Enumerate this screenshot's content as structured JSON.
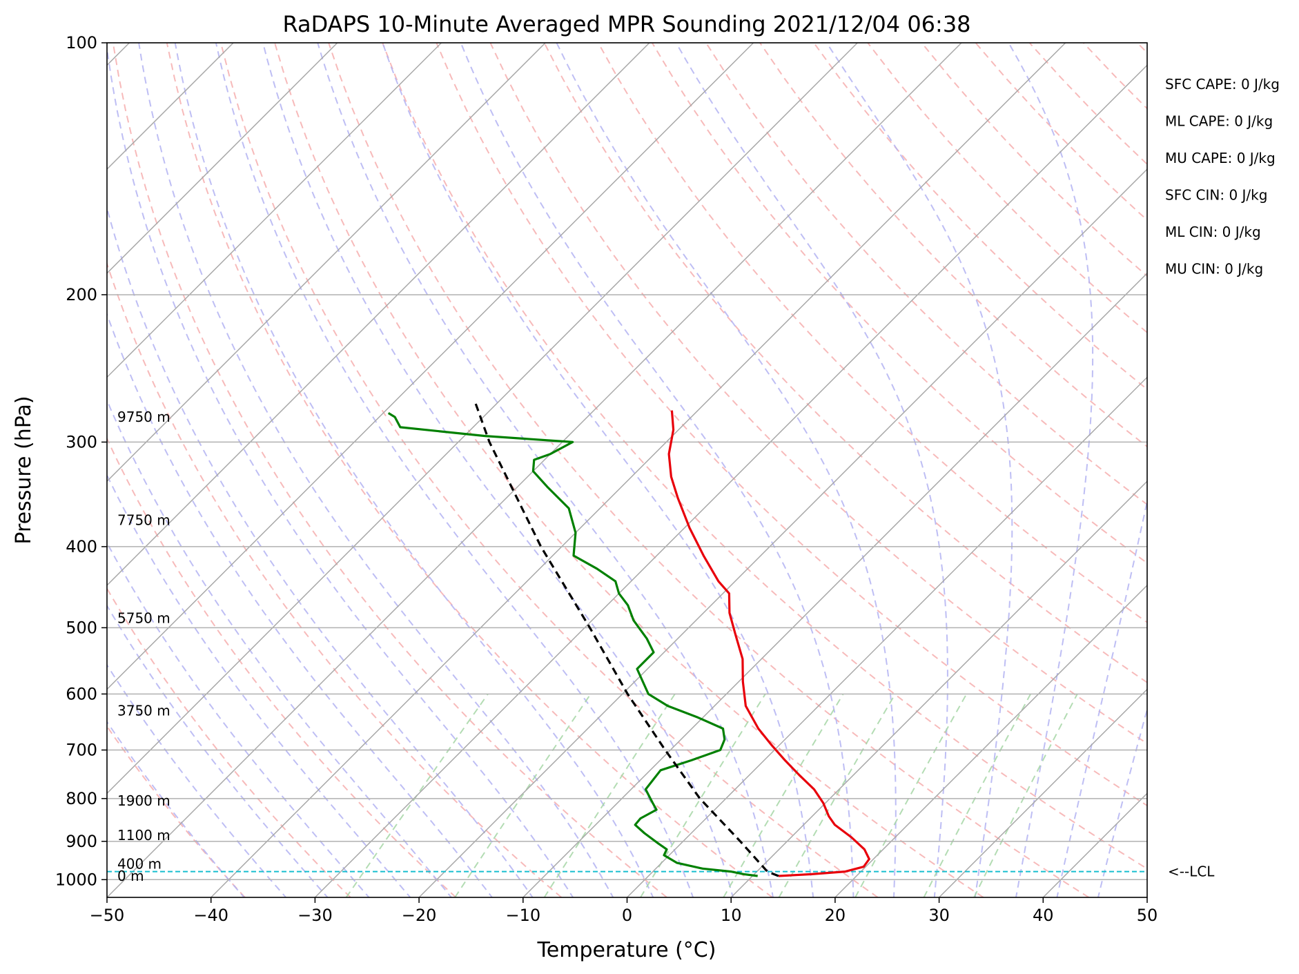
{
  "chart_data": {
    "type": "line",
    "subtype": "skew-t log-p sounding",
    "title": "RaDAPS 10-Minute Averaged MPR Sounding 2021/12/04 06:38",
    "xlabel": "Temperature (°C)",
    "ylabel": "Pressure (hPa)",
    "xlim": [
      -50,
      50
    ],
    "ylim": [
      1050,
      100
    ],
    "y_scale": "log",
    "x_ticks": [
      -50,
      -40,
      -30,
      -20,
      -10,
      0,
      10,
      20,
      30,
      40,
      50
    ],
    "x_tick_labels": [
      "−50",
      "−40",
      "−30",
      "−20",
      "−10",
      "0",
      "10",
      "20",
      "30",
      "40",
      "50"
    ],
    "y_ticks": [
      1000,
      900,
      800,
      700,
      600,
      500,
      400,
      300,
      200,
      100
    ],
    "y_tick_labels": [
      "1000",
      "900",
      "800",
      "700",
      "600",
      "500",
      "400",
      "300",
      "200",
      "100"
    ],
    "grid": true,
    "background_lines": {
      "isotherms": "gray solid skewed",
      "dry_adiabats": "red dashed",
      "moist_adiabats": "blue dashed",
      "mixing_ratio_lines": "green dashed"
    },
    "series": [
      {
        "role": "temperature",
        "color": "#e8000b",
        "points": [
          {
            "p": 990,
            "t": 12.5
          },
          {
            "p": 985,
            "t": 15.5
          },
          {
            "p": 978,
            "t": 18.5
          },
          {
            "p": 965,
            "t": 19.8
          },
          {
            "p": 945,
            "t": 19.6
          },
          {
            "p": 920,
            "t": 18.2
          },
          {
            "p": 890,
            "t": 15.8
          },
          {
            "p": 860,
            "t": 13.0
          },
          {
            "p": 840,
            "t": 11.6
          },
          {
            "p": 810,
            "t": 9.8
          },
          {
            "p": 780,
            "t": 7.6
          },
          {
            "p": 750,
            "t": 4.8
          },
          {
            "p": 720,
            "t": 2.0
          },
          {
            "p": 690,
            "t": -0.8
          },
          {
            "p": 660,
            "t": -3.6
          },
          {
            "p": 620,
            "t": -7.0
          },
          {
            "p": 580,
            "t": -9.6
          },
          {
            "p": 545,
            "t": -11.8
          },
          {
            "p": 510,
            "t": -14.8
          },
          {
            "p": 480,
            "t": -17.5
          },
          {
            "p": 455,
            "t": -19.4
          },
          {
            "p": 440,
            "t": -21.6
          },
          {
            "p": 410,
            "t": -25.5
          },
          {
            "p": 380,
            "t": -29.5
          },
          {
            "p": 350,
            "t": -33.5
          },
          {
            "p": 330,
            "t": -36.2
          },
          {
            "p": 310,
            "t": -38.6
          },
          {
            "p": 290,
            "t": -40.5
          },
          {
            "p": 275,
            "t": -42.5
          }
        ]
      },
      {
        "role": "dewpoint",
        "color": "#008000",
        "points": [
          {
            "p": 990,
            "t": 10.5
          },
          {
            "p": 985,
            "t": 9.0
          },
          {
            "p": 978,
            "t": 7.5
          },
          {
            "p": 970,
            "t": 4.5
          },
          {
            "p": 955,
            "t": 1.5
          },
          {
            "p": 935,
            "t": -0.5
          },
          {
            "p": 920,
            "t": -0.8
          },
          {
            "p": 905,
            "t": -2.2
          },
          {
            "p": 880,
            "t": -4.5
          },
          {
            "p": 860,
            "t": -6.2
          },
          {
            "p": 845,
            "t": -6.3
          },
          {
            "p": 825,
            "t": -5.6
          },
          {
            "p": 810,
            "t": -6.6
          },
          {
            "p": 780,
            "t": -8.6
          },
          {
            "p": 740,
            "t": -9.0
          },
          {
            "p": 720,
            "t": -7.0
          },
          {
            "p": 700,
            "t": -5.2
          },
          {
            "p": 680,
            "t": -5.8
          },
          {
            "p": 660,
            "t": -7.0
          },
          {
            "p": 640,
            "t": -10.5
          },
          {
            "p": 620,
            "t": -14.5
          },
          {
            "p": 600,
            "t": -17.5
          },
          {
            "p": 560,
            "t": -21.0
          },
          {
            "p": 535,
            "t": -21.0
          },
          {
            "p": 515,
            "t": -23.0
          },
          {
            "p": 490,
            "t": -26.0
          },
          {
            "p": 470,
            "t": -28.0
          },
          {
            "p": 455,
            "t": -30.0
          },
          {
            "p": 440,
            "t": -31.5
          },
          {
            "p": 425,
            "t": -34.5
          },
          {
            "p": 410,
            "t": -38.0
          },
          {
            "p": 385,
            "t": -40.0
          },
          {
            "p": 360,
            "t": -43.0
          },
          {
            "p": 340,
            "t": -47.0
          },
          {
            "p": 325,
            "t": -50.0
          },
          {
            "p": 315,
            "t": -51.0
          },
          {
            "p": 310,
            "t": -50.0
          },
          {
            "p": 300,
            "t": -49.0
          },
          {
            "p": 295,
            "t": -58.0
          },
          {
            "p": 288,
            "t": -67.0
          },
          {
            "p": 280,
            "t": -68.5
          },
          {
            "p": 277,
            "t": -69.5
          }
        ]
      },
      {
        "role": "parcel",
        "color": "#000000",
        "style": "dashed",
        "points": [
          {
            "p": 990,
            "t": 12.5
          },
          {
            "p": 978,
            "t": 11.0
          },
          {
            "p": 900,
            "t": 5.5
          },
          {
            "p": 800,
            "t": -2.5
          },
          {
            "p": 700,
            "t": -10.5
          },
          {
            "p": 600,
            "t": -19.5
          },
          {
            "p": 500,
            "t": -29.5
          },
          {
            "p": 400,
            "t": -42.0
          },
          {
            "p": 300,
            "t": -57.0
          },
          {
            "p": 270,
            "t": -62.0
          }
        ]
      }
    ],
    "lcl": {
      "p": 978,
      "label": "<--LCL"
    },
    "height_labels": [
      {
        "p": 990,
        "label": "0 m"
      },
      {
        "p": 958,
        "label": "400 m"
      },
      {
        "p": 885,
        "label": "1100 m"
      },
      {
        "p": 805,
        "label": "1900 m"
      },
      {
        "p": 628,
        "label": "3750 m"
      },
      {
        "p": 487,
        "label": "5750 m"
      },
      {
        "p": 372,
        "label": "7750 m"
      },
      {
        "p": 280,
        "label": "9750 m"
      }
    ],
    "indices": [
      "SFC CAPE: 0 J/kg",
      "ML CAPE: 0 J/kg",
      "MU CAPE: 0 J/kg",
      "SFC CIN: 0 J/kg",
      "ML CIN: 0 J/kg",
      "MU CIN: 0 J/kg"
    ]
  }
}
